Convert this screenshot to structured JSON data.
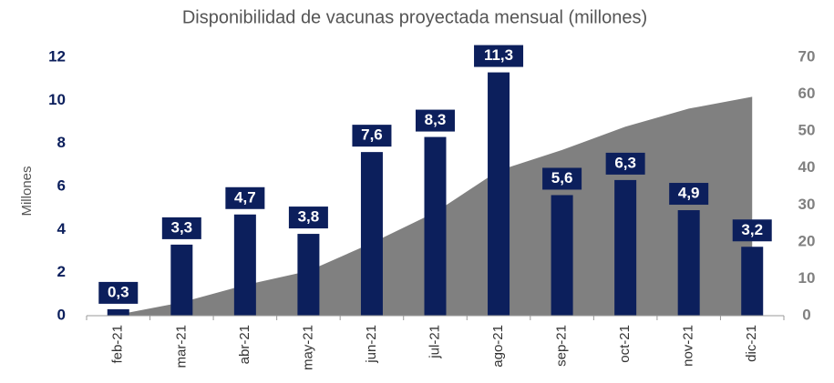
{
  "chart_data": {
    "type": "bar+area",
    "title": "Disponibilidad de vacunas proyectada mensual (millones)",
    "y_label": "Millones",
    "categories": [
      "feb-21",
      "mar-21",
      "abr-21",
      "may-21",
      "jun-21",
      "jul-21",
      "ago-21",
      "sep-21",
      "oct-21",
      "nov-21",
      "dic-21"
    ],
    "series": [
      {
        "type": "bar",
        "color": "#0c1f5c",
        "values": [
          0.3,
          3.3,
          4.7,
          3.8,
          7.6,
          8.3,
          11.3,
          5.6,
          6.3,
          4.9,
          3.2
        ],
        "value_labels": [
          "0,3",
          "3,3",
          "4,7",
          "3,8",
          "7,6",
          "8,3",
          "11,3",
          "5,6",
          "6,3",
          "4,9",
          "3,2"
        ]
      },
      {
        "type": "area",
        "axis": "y2",
        "color": "#808080",
        "values": [
          0.3,
          3.6,
          8.3,
          12.1,
          19.7,
          28,
          39.3,
          44.9,
          51.2,
          56.1,
          59.3
        ]
      }
    ],
    "ylim": [
      0,
      12
    ],
    "yticks": [
      0,
      2,
      4,
      6,
      8,
      10,
      12
    ],
    "y2lim": [
      0,
      70
    ],
    "y2ticks": [
      0,
      10,
      20,
      30,
      40,
      50,
      60,
      70
    ],
    "grid": false
  }
}
